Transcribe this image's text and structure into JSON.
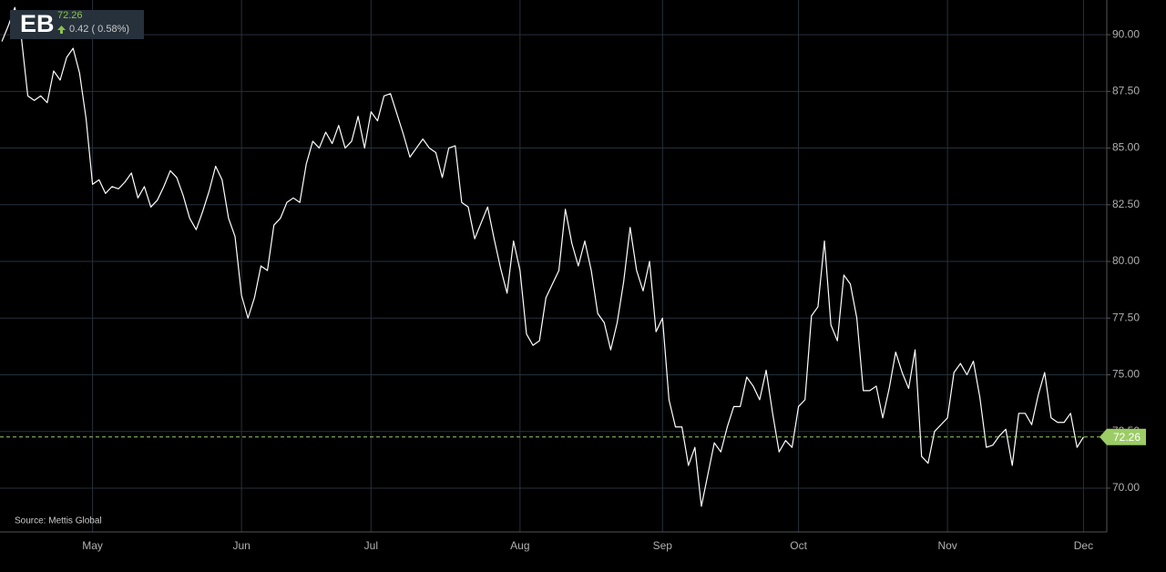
{
  "header": {
    "symbol": "EB",
    "price": "72.26",
    "change": "0.42 ( 0.58%)"
  },
  "chart_data": {
    "type": "line",
    "source": "Source: Mettis Global",
    "color": "#ffffff",
    "grid": true,
    "categories": [
      null,
      null,
      null,
      null,
      null,
      null,
      null,
      null,
      null,
      null,
      null,
      null,
      null,
      null,
      "May",
      null,
      null,
      null,
      null,
      null,
      null,
      null,
      null,
      null,
      null,
      null,
      null,
      null,
      null,
      null,
      null,
      null,
      null,
      null,
      null,
      null,
      null,
      "Jun",
      null,
      null,
      null,
      null,
      null,
      null,
      null,
      null,
      null,
      null,
      null,
      null,
      null,
      null,
      null,
      null,
      null,
      null,
      null,
      "Jul",
      null,
      null,
      null,
      null,
      null,
      null,
      null,
      null,
      null,
      null,
      null,
      null,
      null,
      null,
      null,
      null,
      null,
      null,
      null,
      null,
      null,
      null,
      "Aug",
      null,
      null,
      null,
      null,
      null,
      null,
      null,
      null,
      null,
      null,
      null,
      null,
      null,
      null,
      null,
      null,
      null,
      null,
      null,
      null,
      null,
      "Sep",
      null,
      null,
      null,
      null,
      null,
      null,
      null,
      null,
      null,
      null,
      null,
      null,
      null,
      null,
      null,
      null,
      null,
      null,
      null,
      null,
      "Oct",
      null,
      null,
      null,
      null,
      null,
      null,
      null,
      null,
      null,
      null,
      null,
      null,
      null,
      null,
      null,
      null,
      null,
      null,
      null,
      null,
      null,
      null,
      "Nov",
      null,
      null,
      null,
      null,
      null,
      null,
      null,
      null,
      null,
      null,
      null,
      null,
      null,
      null,
      null,
      null,
      null,
      null,
      null,
      null,
      "Dec"
    ],
    "values": [
      89.7,
      90.4,
      91.2,
      89.9,
      87.3,
      87.1,
      87.3,
      87.0,
      88.4,
      88.0,
      89.0,
      89.4,
      88.3,
      86.3,
      83.4,
      83.6,
      83.0,
      83.3,
      83.2,
      83.5,
      83.9,
      82.8,
      83.3,
      82.4,
      82.7,
      83.3,
      84.0,
      83.7,
      82.9,
      81.9,
      81.4,
      82.2,
      83.1,
      84.2,
      83.6,
      81.9,
      81.1,
      78.5,
      77.5,
      78.4,
      79.8,
      79.6,
      81.6,
      81.9,
      82.6,
      82.8,
      82.6,
      84.3,
      85.3,
      85.0,
      85.7,
      85.2,
      86.0,
      85.0,
      85.3,
      86.4,
      85.0,
      86.6,
      86.2,
      87.3,
      87.4,
      86.5,
      85.6,
      84.6,
      85.0,
      85.4,
      85.0,
      84.8,
      83.7,
      85.0,
      85.1,
      82.6,
      82.4,
      81.0,
      81.7,
      82.4,
      81.0,
      79.7,
      78.6,
      80.9,
      79.6,
      76.8,
      76.3,
      76.5,
      78.4,
      79.0,
      79.6,
      82.3,
      80.8,
      79.8,
      80.9,
      79.6,
      77.7,
      77.3,
      76.1,
      77.3,
      79.1,
      81.5,
      79.6,
      78.7,
      80.0,
      76.9,
      77.5,
      73.9,
      72.7,
      72.7,
      71.0,
      71.8,
      69.2,
      70.6,
      72.0,
      71.6,
      72.7,
      73.6,
      73.6,
      74.9,
      74.5,
      73.9,
      75.2,
      73.3,
      71.6,
      72.1,
      71.8,
      73.6,
      73.9,
      77.6,
      78.0,
      80.9,
      77.2,
      76.5,
      79.4,
      79.0,
      77.5,
      74.3,
      74.3,
      74.5,
      73.1,
      74.4,
      76.0,
      75.1,
      74.4,
      76.1,
      71.4,
      71.1,
      72.5,
      72.8,
      73.1,
      75.1,
      75.5,
      75.0,
      75.6,
      74.0,
      71.8,
      71.9,
      72.3,
      72.6,
      71.0,
      73.3,
      73.3,
      72.8,
      74.1,
      75.1,
      73.1,
      72.9,
      72.9,
      73.3,
      71.8,
      72.26
    ],
    "ylim": [
      68.07,
      91.53
    ],
    "yticks": [
      {
        "value": 70,
        "label": "70.00"
      },
      {
        "value": 72.5,
        "label": "72.50"
      },
      {
        "value": 75,
        "label": "75.00"
      },
      {
        "value": 77.5,
        "label": "77.50"
      },
      {
        "value": 80,
        "label": "80.00"
      },
      {
        "value": 82.5,
        "label": "82.50"
      },
      {
        "value": 85,
        "label": "85.00"
      },
      {
        "value": 87.5,
        "label": "87.50"
      },
      {
        "value": 90,
        "label": "90.00"
      }
    ],
    "last_price": {
      "value": 72.26,
      "label": "72.26",
      "color": "#9ccc65"
    }
  }
}
